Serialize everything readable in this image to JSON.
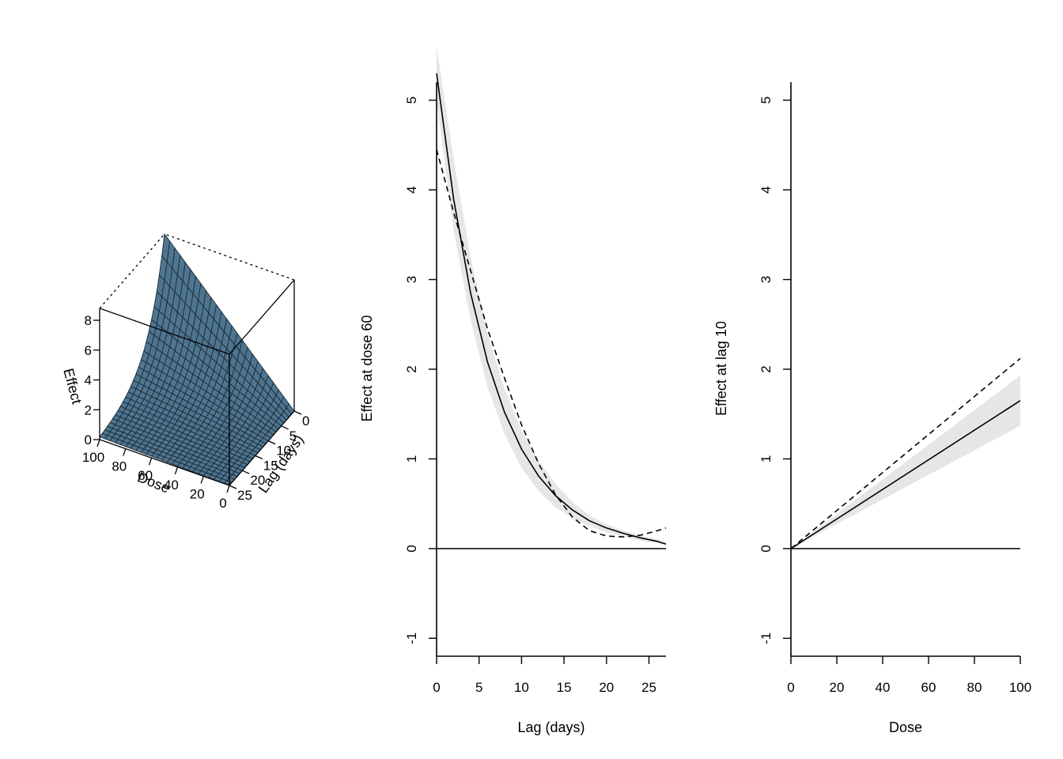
{
  "colors": {
    "surface": "#4e7590",
    "surface_grid": "#1b2a36",
    "ci_band": "#e6e6e6",
    "line": "#000000"
  },
  "chart_data": [
    {
      "type": "surface",
      "x_label": "Dose",
      "y_label": "Lag (days)",
      "z_label": "Effect",
      "x_ticks": [
        "0",
        "20",
        "40",
        "60",
        "80",
        "100"
      ],
      "y_ticks": [
        "0",
        "5",
        "10",
        "15",
        "20",
        "25"
      ],
      "z_ticks": [
        "0",
        "2",
        "4",
        "6",
        "8"
      ],
      "xlim": [
        0,
        100
      ],
      "ylim": [
        0,
        27
      ],
      "zlim": [
        0,
        8.8
      ],
      "max_effect": 8.8,
      "decay_rate": 0.155
    },
    {
      "type": "line",
      "x_label": "Lag (days)",
      "y_label": "Effect at dose 60",
      "x_ticks": [
        "0",
        "5",
        "10",
        "15",
        "20",
        "25"
      ],
      "y_ticks": [
        "-1",
        "0",
        "1",
        "2",
        "3",
        "4",
        "5"
      ],
      "xlim": [
        0,
        27
      ],
      "ylim": [
        -1.2,
        5.2
      ],
      "reference_line": 0,
      "series": [
        {
          "style": "solid",
          "x": [
            0,
            2,
            4,
            6,
            8,
            10,
            12,
            14,
            16,
            18,
            20,
            22,
            24,
            26,
            27
          ],
          "y": [
            5.3,
            3.9,
            2.85,
            2.08,
            1.52,
            1.11,
            0.81,
            0.59,
            0.43,
            0.31,
            0.23,
            0.17,
            0.12,
            0.08,
            0.05
          ]
        },
        {
          "style": "dashed",
          "x": [
            0,
            2,
            4,
            6,
            8,
            10,
            12,
            14,
            16,
            18,
            20,
            22,
            24,
            26,
            27
          ],
          "y": [
            4.45,
            3.75,
            3.1,
            2.45,
            1.9,
            1.38,
            0.95,
            0.6,
            0.35,
            0.2,
            0.14,
            0.13,
            0.15,
            0.2,
            0.23
          ]
        }
      ],
      "ci_band": {
        "x": [
          0,
          2,
          4,
          6,
          8,
          10,
          12,
          14,
          16,
          18,
          20,
          22,
          24,
          26,
          27
        ],
        "lower": [
          5.0,
          3.55,
          2.55,
          1.8,
          1.28,
          0.9,
          0.64,
          0.46,
          0.34,
          0.25,
          0.18,
          0.13,
          0.09,
          0.06,
          0.04
        ],
        "upper": [
          5.6,
          4.35,
          3.25,
          2.4,
          1.78,
          1.32,
          0.98,
          0.72,
          0.52,
          0.37,
          0.27,
          0.2,
          0.15,
          0.1,
          0.07
        ]
      }
    },
    {
      "type": "line",
      "x_label": "Dose",
      "y_label": "Effect at lag 10",
      "x_ticks": [
        "0",
        "20",
        "40",
        "60",
        "80",
        "100"
      ],
      "y_ticks": [
        "-1",
        "0",
        "1",
        "2",
        "3",
        "4",
        "5"
      ],
      "xlim": [
        0,
        100
      ],
      "ylim": [
        -1.2,
        5.2
      ],
      "reference_line": 0,
      "series": [
        {
          "style": "solid",
          "x": [
            0,
            100
          ],
          "y": [
            0,
            1.65
          ]
        },
        {
          "style": "dashed",
          "x": [
            0,
            100
          ],
          "y": [
            0,
            2.12
          ]
        }
      ],
      "ci_band": {
        "x": [
          0,
          100
        ],
        "lower": [
          0,
          1.37
        ],
        "upper": [
          0,
          1.93
        ]
      }
    }
  ]
}
